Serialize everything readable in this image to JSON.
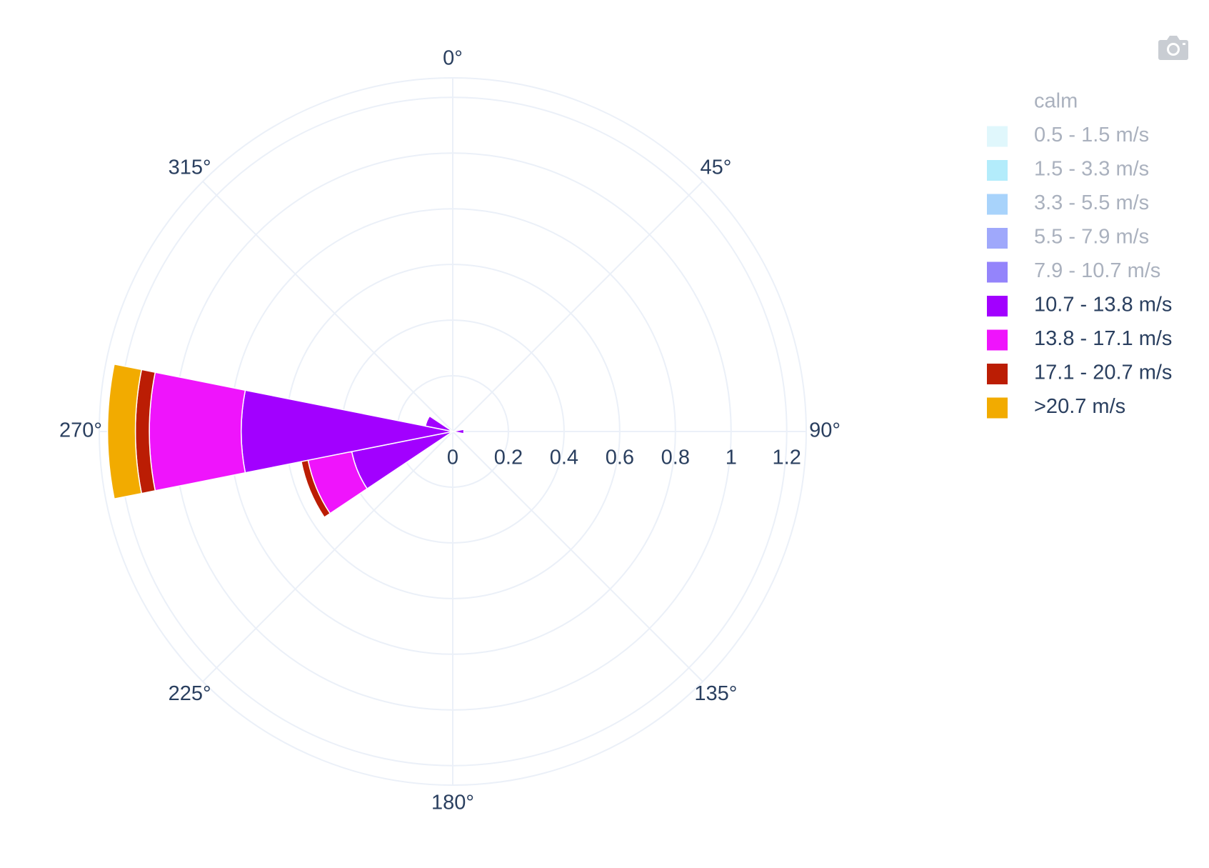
{
  "toolbar": {
    "camera_icon": "camera-icon"
  },
  "chart_data": {
    "type": "barpolar",
    "title": "",
    "angular_axis": {
      "direction": "clockwise",
      "rotation_zero": "top",
      "ticks": [
        0,
        45,
        90,
        135,
        180,
        225,
        270,
        315
      ],
      "tick_labels": [
        "0°",
        "45°",
        "90°",
        "135°",
        "180°",
        "225°",
        "270°",
        "315°"
      ]
    },
    "radial_axis": {
      "range": [
        0,
        1.27
      ],
      "ticks": [
        0,
        0.2,
        0.4,
        0.6,
        0.8,
        1,
        1.2
      ],
      "tick_labels": [
        "0",
        "0.2",
        "0.4",
        "0.6",
        "0.8",
        "1",
        "1.2"
      ],
      "label_angle_deg": 90
    },
    "stacked": true,
    "sector_width_deg": 22.5,
    "grid": true,
    "legend_placement": "right",
    "series": [
      {
        "name": "calm",
        "color": "#ffffff",
        "visible": false,
        "values": []
      },
      {
        "name": "0.5 - 1.5 m/s",
        "color": "#e0f7fc",
        "visible": false,
        "values": []
      },
      {
        "name": "1.5 - 3.3 m/s",
        "color": "#b3ecfb",
        "visible": false,
        "values": []
      },
      {
        "name": "3.3 - 5.5 m/s",
        "color": "#a8d3fb",
        "visible": false,
        "values": []
      },
      {
        "name": "5.5 - 7.9 m/s",
        "color": "#9fa8fb",
        "visible": false,
        "values": []
      },
      {
        "name": "7.9 - 10.7 m/s",
        "color": "#9484fb",
        "visible": false,
        "values": []
      },
      {
        "name": "10.7 - 13.8 m/s",
        "color": "#a200ff",
        "visible": true,
        "values": [
          {
            "direction": 90,
            "value": 0.04
          },
          {
            "direction": 247.5,
            "value": 0.37
          },
          {
            "direction": 270,
            "value": 0.76
          },
          {
            "direction": 292.5,
            "value": 0.1
          }
        ]
      },
      {
        "name": "13.8 - 17.1 m/s",
        "color": "#ef14fc",
        "visible": true,
        "values": [
          {
            "direction": 247.5,
            "value": 0.16
          },
          {
            "direction": 270,
            "value": 0.33
          }
        ]
      },
      {
        "name": "17.1 - 20.7 m/s",
        "color": "#bb1d04",
        "visible": true,
        "values": [
          {
            "direction": 247.5,
            "value": 0.025
          },
          {
            "direction": 270,
            "value": 0.05
          }
        ]
      },
      {
        "name": ">20.7 m/s",
        "color": "#f2ab00",
        "visible": true,
        "values": [
          {
            "direction": 270,
            "value": 0.1
          }
        ]
      }
    ]
  }
}
